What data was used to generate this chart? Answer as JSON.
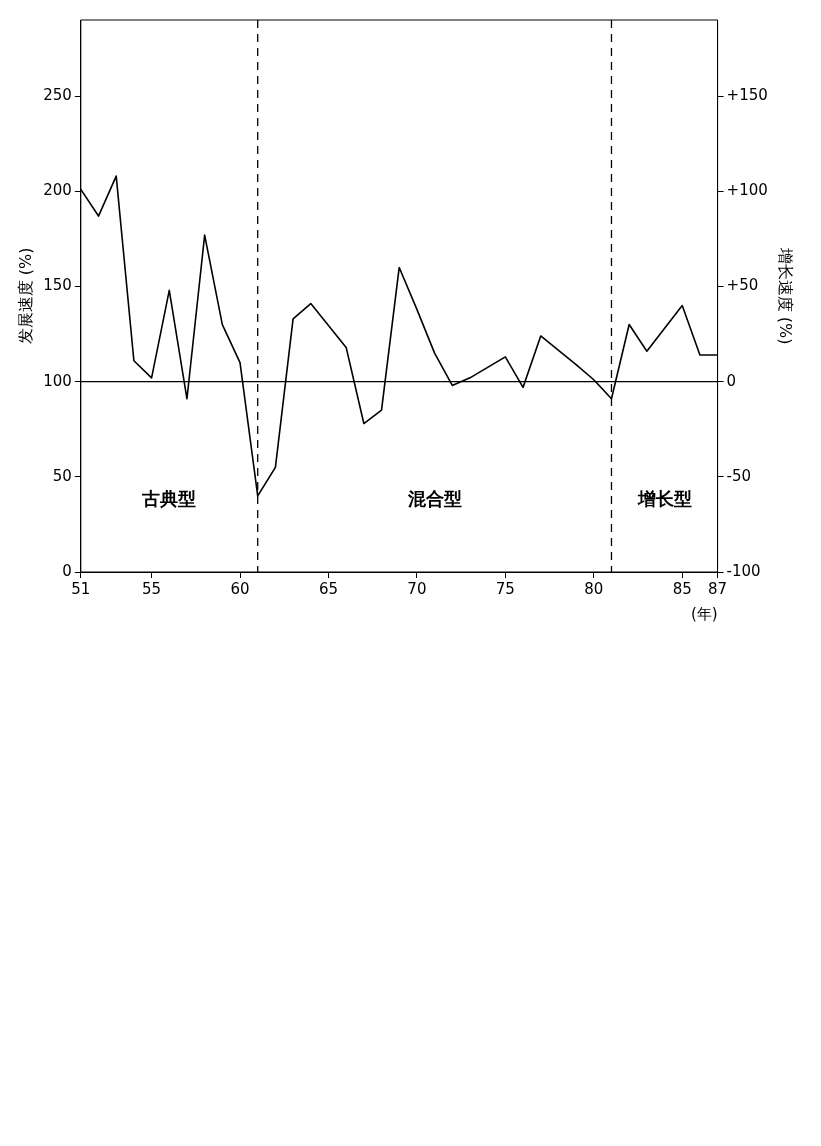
{
  "chart_data": {
    "type": "line",
    "xlabel": "(年)",
    "ylabel": "发展速度 (%)",
    "y2label": "增长速度 (%)",
    "x": [
      51,
      52,
      53,
      54,
      55,
      56,
      57,
      58,
      59,
      60,
      61,
      62,
      63,
      64,
      66,
      67,
      68,
      69,
      70,
      71,
      72,
      73,
      75,
      76,
      77,
      79,
      80,
      81,
      82,
      83,
      85,
      86,
      87
    ],
    "series": [
      {
        "color": "#000000",
        "values": [
          201,
          187,
          208,
          111,
          102,
          148,
          91,
          177,
          130,
          110,
          40,
          55,
          133,
          141,
          118,
          78,
          85,
          160,
          138,
          115,
          98,
          102,
          113,
          97,
          124,
          109,
          101,
          91,
          130,
          116,
          140,
          114,
          114
        ]
      }
    ],
    "xlim": [
      51,
      87
    ],
    "xticks": [
      51,
      55,
      60,
      65,
      70,
      75,
      80,
      85,
      87
    ],
    "ylim": [
      0,
      290
    ],
    "yticks": [
      0,
      50,
      100,
      150,
      200,
      250
    ],
    "y2lim": [
      -100,
      190
    ],
    "y2ticks": [
      {
        "value": -100,
        "label": "-100"
      },
      {
        "value": -50,
        "label": "-50"
      },
      {
        "value": 0,
        "label": "0"
      },
      {
        "value": 50,
        "label": "+50"
      },
      {
        "value": 100,
        "label": "+100"
      },
      {
        "value": 150,
        "label": "+150"
      }
    ],
    "ref_lines": [
      {
        "axis": "y",
        "value": 100,
        "color": "#000000",
        "line_style": "solid"
      },
      {
        "axis": "x",
        "value": 61,
        "color": "#000000",
        "line_style": "dashed"
      },
      {
        "axis": "x",
        "value": 81,
        "color": "#000000",
        "line_style": "dashed"
      }
    ],
    "annotations": [
      "古典型",
      "混合型",
      "增长型"
    ],
    "grid": false,
    "legend": false
  }
}
